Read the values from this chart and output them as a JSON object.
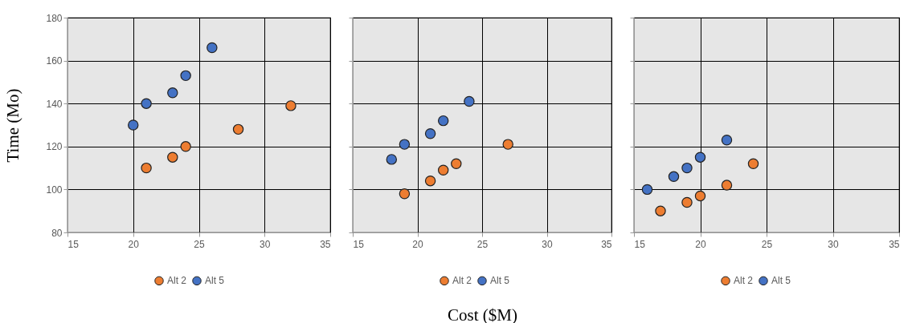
{
  "chart_data": [
    {
      "type": "scatter",
      "ylabel": "Time (Mo)",
      "xlim": [
        15,
        35
      ],
      "xticks": [
        15,
        20,
        25,
        30,
        35
      ],
      "ylim": [
        80,
        180
      ],
      "yticks": [
        80,
        100,
        120,
        140,
        160,
        180
      ],
      "grid": true,
      "legend": "bottom",
      "marker": "circle",
      "series": [
        {
          "name": "Alt 2",
          "color": "#ed7d31",
          "x": [
            21,
            23,
            24,
            28,
            32
          ],
          "values": [
            110,
            115,
            120,
            128,
            139
          ]
        },
        {
          "name": "Alt 5",
          "color": "#4472c4",
          "x": [
            20,
            21,
            23,
            24,
            26
          ],
          "values": [
            130,
            140,
            145,
            153,
            166
          ]
        }
      ]
    },
    {
      "type": "scatter",
      "xlabel": "Cost ($M)",
      "xlim": [
        15,
        35
      ],
      "xticks": [
        15,
        20,
        25,
        30,
        35
      ],
      "ylim": [
        80,
        180
      ],
      "yticks": [
        80,
        100,
        120,
        140,
        160,
        180
      ],
      "tick_labels": "x",
      "grid": true,
      "legend": "bottom",
      "marker": "circle",
      "series": [
        {
          "name": "Alt 2",
          "color": "#ed7d31",
          "x": [
            19,
            21,
            22,
            23,
            27
          ],
          "values": [
            98,
            104,
            109,
            112,
            121
          ]
        },
        {
          "name": "Alt 5",
          "color": "#4472c4",
          "x": [
            18,
            19,
            21,
            22,
            24
          ],
          "values": [
            114,
            121,
            126,
            132,
            141
          ]
        }
      ]
    },
    {
      "type": "scatter",
      "xlim": [
        15,
        35
      ],
      "xticks": [
        15,
        20,
        25,
        30,
        35
      ],
      "ylim": [
        80,
        180
      ],
      "yticks": [
        80,
        100,
        120,
        140,
        160,
        180
      ],
      "tick_labels": "x",
      "grid": true,
      "legend": "bottom",
      "marker": "circle",
      "series": [
        {
          "name": "Alt 2",
          "color": "#ed7d31",
          "x": [
            17,
            19,
            20,
            22,
            24
          ],
          "values": [
            90,
            94,
            97,
            102,
            112
          ]
        },
        {
          "name": "Alt 5",
          "color": "#4472c4",
          "x": [
            16,
            18,
            19,
            20,
            22
          ],
          "values": [
            100,
            106,
            110,
            115,
            123
          ]
        }
      ]
    }
  ]
}
